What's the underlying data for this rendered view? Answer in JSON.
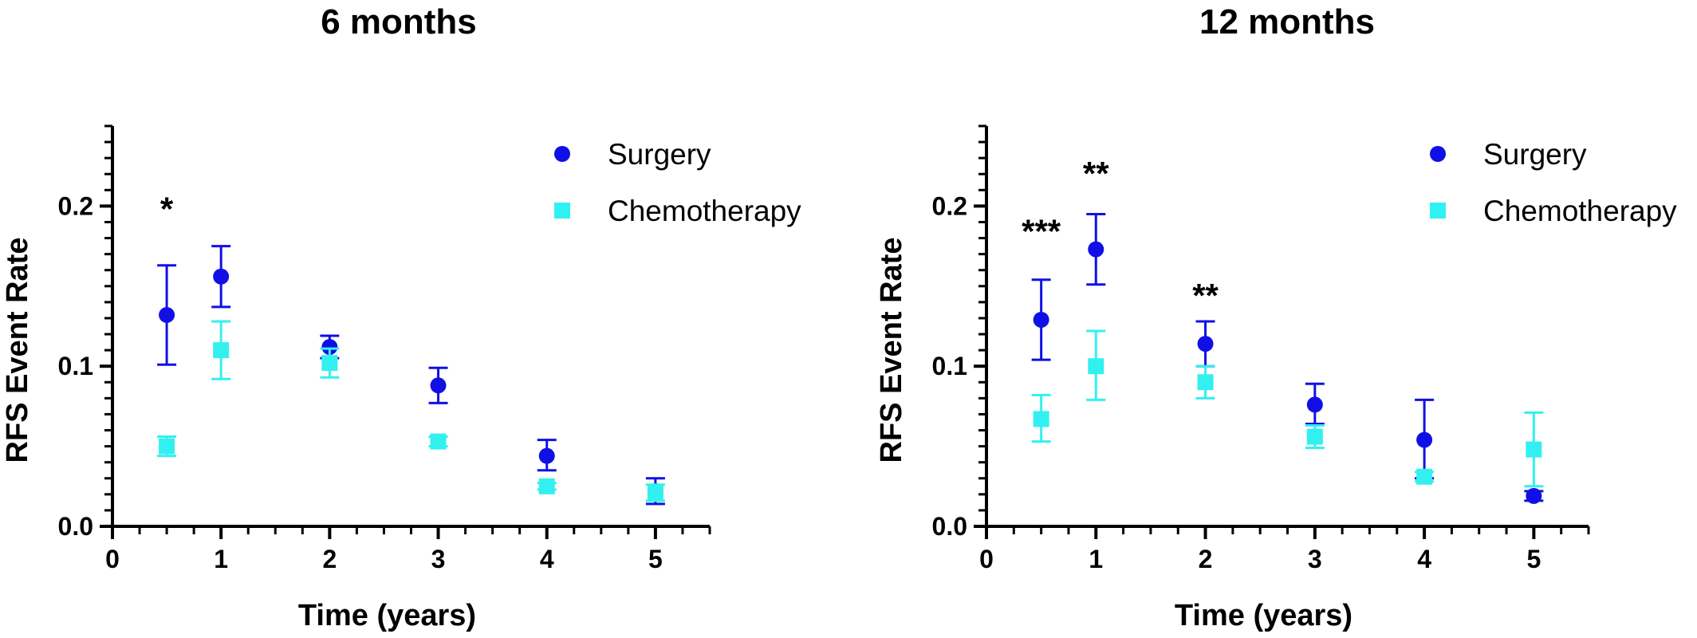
{
  "chart_data": [
    {
      "type": "scatter",
      "title": "6 months",
      "xlabel": "Time (years)",
      "ylabel": "RFS Event Rate",
      "xlim": [
        0,
        5.5
      ],
      "ylim": [
        0,
        0.25
      ],
      "x_ticks": [
        0,
        1,
        2,
        3,
        4,
        5
      ],
      "y_ticks": [
        0.0,
        0.1,
        0.2
      ],
      "x_tick_labels": [
        "0",
        "1",
        "2",
        "3",
        "4",
        "5"
      ],
      "y_tick_labels": [
        "0.0",
        "0.1",
        "0.2"
      ],
      "legend_position": "top-right",
      "series": [
        {
          "name": "Surgery",
          "marker": "circle",
          "color": "#1010E6",
          "x": [
            0.5,
            1,
            2,
            3,
            4,
            5
          ],
          "y": [
            0.132,
            0.156,
            0.112,
            0.088,
            0.044,
            0.022
          ],
          "err_low": [
            0.101,
            0.137,
            0.105,
            0.077,
            0.035,
            0.014
          ],
          "err_high": [
            0.163,
            0.175,
            0.119,
            0.099,
            0.054,
            0.03
          ]
        },
        {
          "name": "Chemotherapy",
          "marker": "square",
          "color": "#33F0F0",
          "x": [
            0.5,
            1,
            2,
            3,
            4,
            5
          ],
          "y": [
            0.05,
            0.11,
            0.102,
            0.053,
            0.025,
            0.021
          ],
          "err_low": [
            0.044,
            0.092,
            0.093,
            0.05,
            0.023,
            0.016
          ],
          "err_high": [
            0.056,
            0.128,
            0.111,
            0.056,
            0.027,
            0.026
          ]
        }
      ],
      "annotations": [
        {
          "text": "*",
          "x": 0.5,
          "y": 0.2
        }
      ]
    },
    {
      "type": "scatter",
      "title": "12 months",
      "xlabel": "Time (years)",
      "ylabel": "RFS Event Rate",
      "xlim": [
        0,
        5.5
      ],
      "ylim": [
        0,
        0.25
      ],
      "x_ticks": [
        0,
        1,
        2,
        3,
        4,
        5
      ],
      "y_ticks": [
        0.0,
        0.1,
        0.2
      ],
      "x_tick_labels": [
        "0",
        "1",
        "2",
        "3",
        "4",
        "5"
      ],
      "y_tick_labels": [
        "0.0",
        "0.1",
        "0.2"
      ],
      "legend_position": "top-right",
      "series": [
        {
          "name": "Surgery",
          "marker": "circle",
          "color": "#1010E6",
          "x": [
            0.5,
            1,
            2,
            3,
            4,
            5
          ],
          "y": [
            0.129,
            0.173,
            0.114,
            0.076,
            0.054,
            0.019
          ],
          "err_low": [
            0.104,
            0.151,
            0.1,
            0.064,
            0.03,
            0.016
          ],
          "err_high": [
            0.154,
            0.195,
            0.128,
            0.089,
            0.079,
            0.022
          ]
        },
        {
          "name": "Chemotherapy",
          "marker": "square",
          "color": "#33F0F0",
          "x": [
            0.5,
            1,
            2,
            3,
            4,
            5
          ],
          "y": [
            0.067,
            0.1,
            0.09,
            0.056,
            0.031,
            0.048
          ],
          "err_low": [
            0.053,
            0.079,
            0.08,
            0.049,
            0.028,
            0.025
          ],
          "err_high": [
            0.082,
            0.122,
            0.1,
            0.063,
            0.034,
            0.071
          ]
        }
      ],
      "annotations": [
        {
          "text": "***",
          "x": 0.5,
          "y": 0.186
        },
        {
          "text": "**",
          "x": 1,
          "y": 0.222
        },
        {
          "text": "**",
          "x": 2,
          "y": 0.146
        }
      ]
    }
  ]
}
